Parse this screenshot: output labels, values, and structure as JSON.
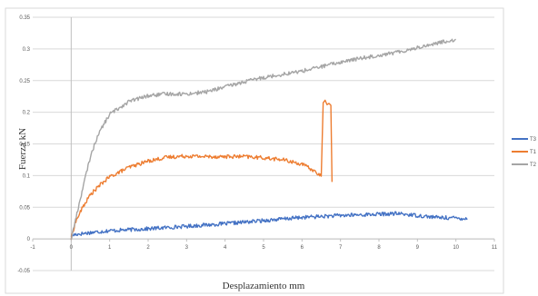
{
  "chart_data": {
    "type": "line",
    "title": "",
    "xlabel": "Desplazamiento mm",
    "ylabel": "Fuerza kN",
    "xlim": [
      -1,
      11
    ],
    "ylim": [
      -0.05,
      0.35
    ],
    "x_ticks": [
      "-1",
      "0",
      "1",
      "2",
      "3",
      "4",
      "5",
      "6",
      "7",
      "8",
      "9",
      "10",
      "11"
    ],
    "y_ticks": [
      "-0.05",
      "0",
      "0.05",
      "0.1",
      "0.15",
      "0.2",
      "0.25",
      "0.3",
      "0.35"
    ],
    "grid": true,
    "legend_position": "right",
    "legend": [
      "T3",
      "T1",
      "T2"
    ],
    "series": [
      {
        "name": "T3",
        "color": "#4472C4",
        "points": [
          [
            0,
            0.005
          ],
          [
            0.1,
            0.007
          ],
          [
            0.5,
            0.01
          ],
          [
            1,
            0.013
          ],
          [
            2,
            0.016
          ],
          [
            3,
            0.02
          ],
          [
            4,
            0.024
          ],
          [
            5,
            0.029
          ],
          [
            6,
            0.034
          ],
          [
            7,
            0.037
          ],
          [
            8,
            0.039
          ],
          [
            8.5,
            0.04
          ],
          [
            9,
            0.037
          ],
          [
            9.5,
            0.034
          ],
          [
            10,
            0.033
          ],
          [
            10.3,
            0.032
          ]
        ]
      },
      {
        "name": "T1",
        "color": "#ED7D31",
        "points": [
          [
            0,
            0.0
          ],
          [
            0.1,
            0.025
          ],
          [
            0.3,
            0.05
          ],
          [
            0.5,
            0.07
          ],
          [
            0.8,
            0.088
          ],
          [
            1,
            0.098
          ],
          [
            1.5,
            0.113
          ],
          [
            2,
            0.123
          ],
          [
            2.5,
            0.129
          ],
          [
            3,
            0.131
          ],
          [
            3.5,
            0.13
          ],
          [
            4,
            0.13
          ],
          [
            4.5,
            0.13
          ],
          [
            5,
            0.128
          ],
          [
            5.5,
            0.125
          ],
          [
            6,
            0.118
          ],
          [
            6.3,
            0.108
          ],
          [
            6.5,
            0.099
          ],
          [
            6.55,
            0.215
          ],
          [
            6.6,
            0.219
          ],
          [
            6.65,
            0.212
          ],
          [
            6.7,
            0.214
          ],
          [
            6.75,
            0.211
          ],
          [
            6.78,
            0.09
          ]
        ]
      },
      {
        "name": "T2",
        "color": "#A5A5A5",
        "points": [
          [
            0,
            0.0
          ],
          [
            0.15,
            0.04
          ],
          [
            0.3,
            0.08
          ],
          [
            0.5,
            0.13
          ],
          [
            0.7,
            0.165
          ],
          [
            1,
            0.197
          ],
          [
            1.5,
            0.217
          ],
          [
            2,
            0.226
          ],
          [
            2.5,
            0.229
          ],
          [
            3,
            0.229
          ],
          [
            3.5,
            0.232
          ],
          [
            4,
            0.24
          ],
          [
            4.5,
            0.248
          ],
          [
            5,
            0.255
          ],
          [
            5.5,
            0.26
          ],
          [
            6,
            0.265
          ],
          [
            6.5,
            0.272
          ],
          [
            7,
            0.279
          ],
          [
            7.5,
            0.285
          ],
          [
            8,
            0.29
          ],
          [
            8.5,
            0.295
          ],
          [
            9,
            0.302
          ],
          [
            9.5,
            0.309
          ],
          [
            10,
            0.315
          ]
        ]
      }
    ]
  }
}
